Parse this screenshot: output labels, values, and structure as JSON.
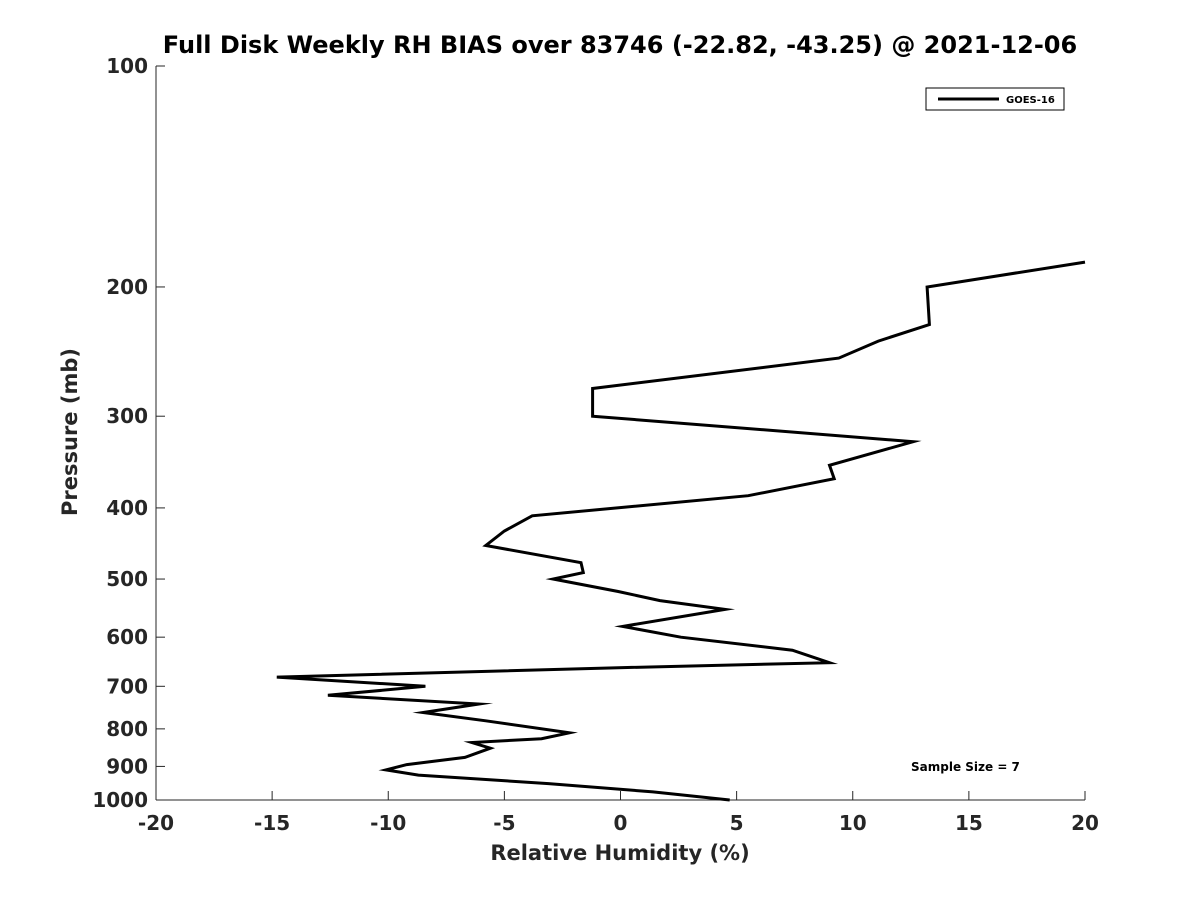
{
  "chart_data": {
    "type": "line",
    "title": "Full Disk Weekly RH BIAS over 83746 (-22.82, -43.25) @ 2021-12-06",
    "xlabel": "Relative Humidity (%)",
    "ylabel": "Pressure (mb)",
    "xlim": [
      -20,
      20
    ],
    "ylim": [
      100,
      1000
    ],
    "y_scale": "log",
    "y_reversed": true,
    "x_ticks": [
      "-20",
      "-15",
      "-10",
      "-5",
      "0",
      "5",
      "10",
      "15",
      "20"
    ],
    "y_ticks": [
      "100",
      "200",
      "300",
      "400",
      "500",
      "600",
      "700",
      "800",
      "900",
      "1000"
    ],
    "grid": false,
    "legend_position": "top-right",
    "annotation": "Sample Size = 7",
    "series": [
      {
        "name": "GOES-16",
        "color": "#000000",
        "points": [
          {
            "rh": 4.7,
            "p": 1000
          },
          {
            "rh": 1.4,
            "p": 975
          },
          {
            "rh": -3.1,
            "p": 950
          },
          {
            "rh": -8.7,
            "p": 925
          },
          {
            "rh": -10.1,
            "p": 910
          },
          {
            "rh": -9.2,
            "p": 895
          },
          {
            "rh": -6.7,
            "p": 875
          },
          {
            "rh": -5.6,
            "p": 850
          },
          {
            "rh": -6.4,
            "p": 835
          },
          {
            "rh": -3.4,
            "p": 825
          },
          {
            "rh": -2.2,
            "p": 810
          },
          {
            "rh": -5.8,
            "p": 780
          },
          {
            "rh": -8.5,
            "p": 760
          },
          {
            "rh": -6.1,
            "p": 740
          },
          {
            "rh": -12.6,
            "p": 720
          },
          {
            "rh": -8.4,
            "p": 700
          },
          {
            "rh": -14.8,
            "p": 680
          },
          {
            "rh": 0.3,
            "p": 660
          },
          {
            "rh": 9.0,
            "p": 650
          },
          {
            "rh": 7.4,
            "p": 625
          },
          {
            "rh": 2.6,
            "p": 600
          },
          {
            "rh": 0.1,
            "p": 580
          },
          {
            "rh": 4.5,
            "p": 550
          },
          {
            "rh": 1.7,
            "p": 535
          },
          {
            "rh": -0.1,
            "p": 520
          },
          {
            "rh": -2.9,
            "p": 500
          },
          {
            "rh": -1.6,
            "p": 490
          },
          {
            "rh": -1.7,
            "p": 475
          },
          {
            "rh": -5.8,
            "p": 450
          },
          {
            "rh": -5.0,
            "p": 430
          },
          {
            "rh": -3.8,
            "p": 410
          },
          {
            "rh": 5.5,
            "p": 385
          },
          {
            "rh": 9.2,
            "p": 365
          },
          {
            "rh": 9.0,
            "p": 350
          },
          {
            "rh": 12.6,
            "p": 325
          },
          {
            "rh": -1.2,
            "p": 300
          },
          {
            "rh": -1.2,
            "p": 275
          },
          {
            "rh": 9.4,
            "p": 250
          },
          {
            "rh": 11.1,
            "p": 237
          },
          {
            "rh": 13.3,
            "p": 225
          },
          {
            "rh": 13.2,
            "p": 200
          },
          {
            "rh": 20.0,
            "p": 185
          }
        ]
      }
    ]
  }
}
